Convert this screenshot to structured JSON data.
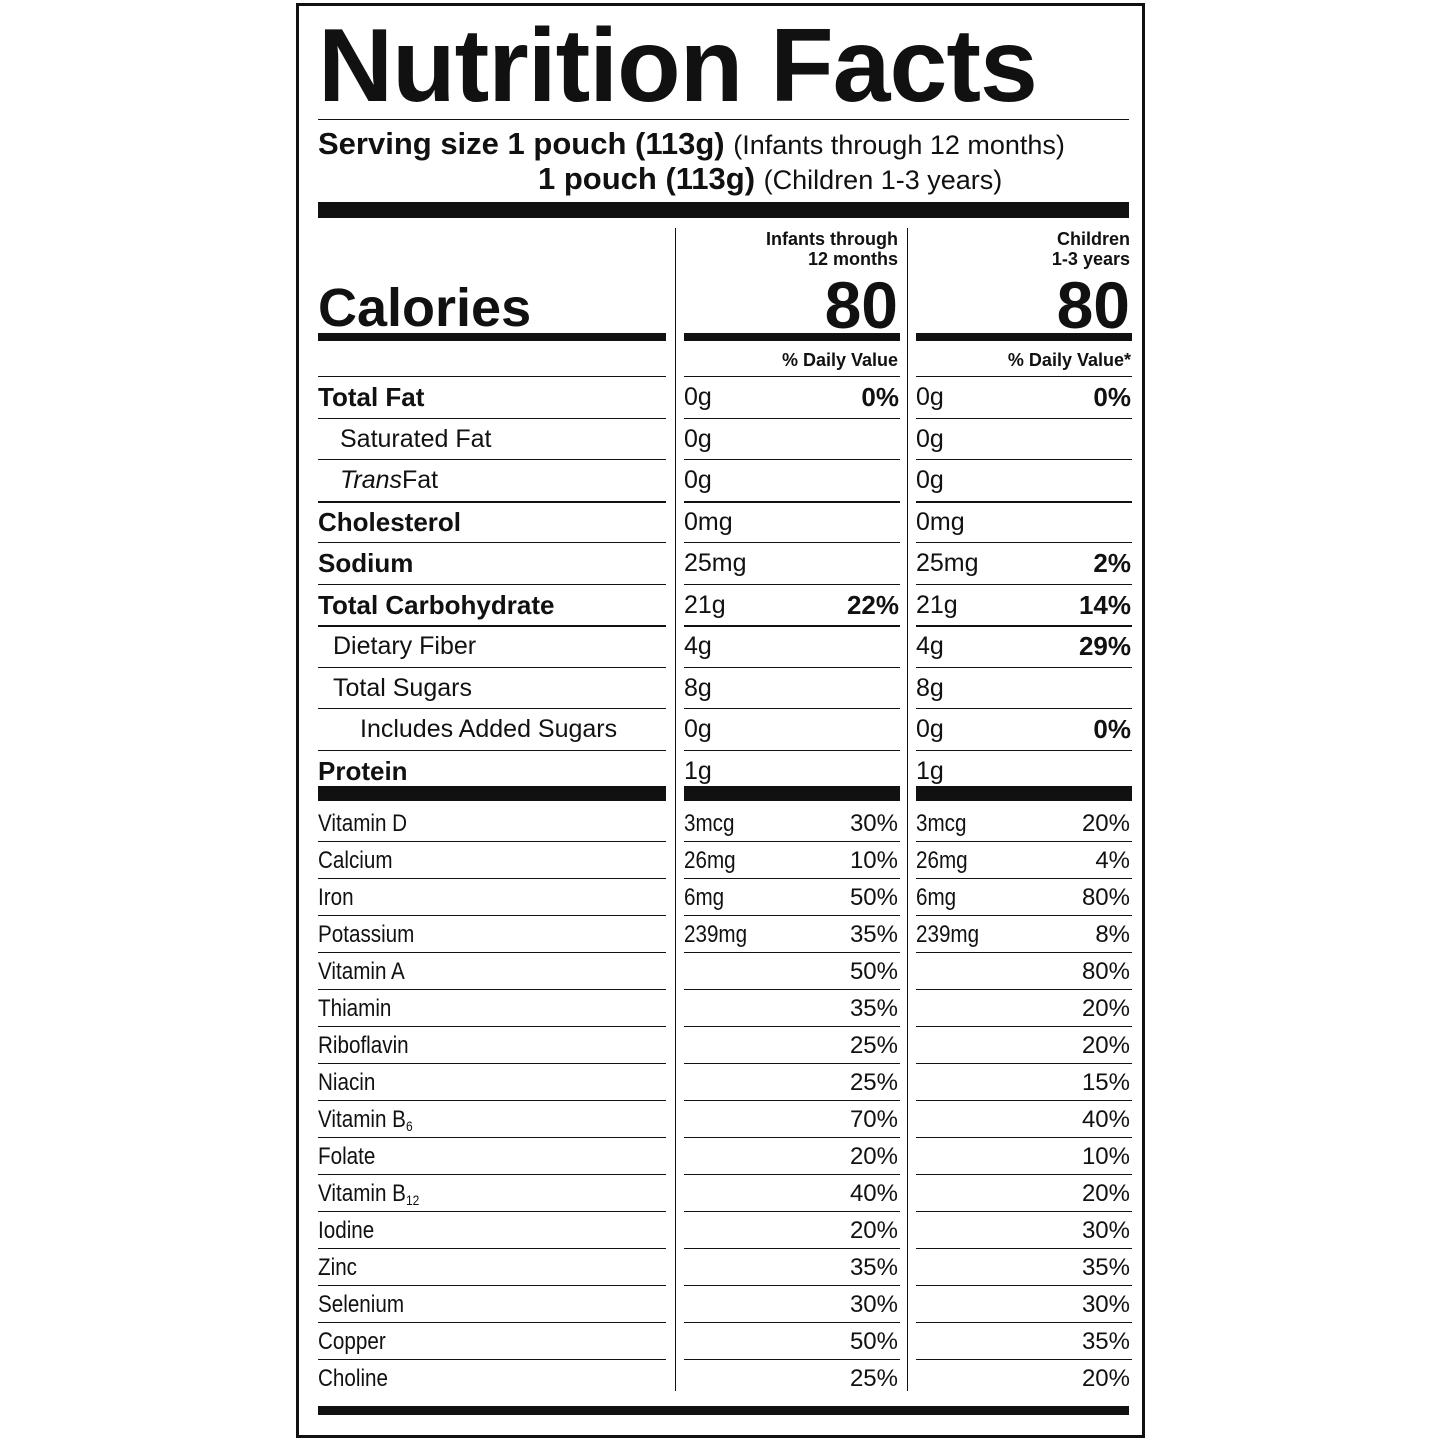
{
  "title": "Nutrition Facts",
  "serving": {
    "label": "Serving size",
    "line1_amount": "1 pouch (113g)",
    "line1_group": "(Infants through 12 months)",
    "line2_amount": "1 pouch (113g)",
    "line2_group": "(Children 1-3 years)"
  },
  "columns": {
    "infants": {
      "head1": "Infants through",
      "head2": "12 months",
      "calories": "80",
      "dv_label": "% Daily Value"
    },
    "children": {
      "head1": "Children",
      "head2": "1-3 years",
      "calories": "80",
      "dv_label": "% Daily Value*"
    }
  },
  "calories_label": "Calories",
  "nutrients": [
    {
      "label": "Total Fat",
      "bold": true,
      "indent": 0,
      "inf_amt": "0g",
      "inf_pct": "0%",
      "chi_amt": "0g",
      "chi_pct": "0%"
    },
    {
      "label": "Saturated Fat",
      "bold": false,
      "indent": 1,
      "inf_amt": "0g",
      "inf_pct": "",
      "chi_amt": "0g",
      "chi_pct": ""
    },
    {
      "label": "Trans",
      "label_suffix": " Fat",
      "italic": true,
      "bold": false,
      "indent": 1,
      "inf_amt": "0g",
      "inf_pct": "",
      "chi_amt": "0g",
      "chi_pct": ""
    },
    {
      "label": "Cholesterol",
      "bold": true,
      "indent": 0,
      "inf_amt": "0mg",
      "inf_pct": "",
      "chi_amt": "0mg",
      "chi_pct": ""
    },
    {
      "label": "Sodium",
      "bold": true,
      "indent": 0,
      "inf_amt": "25mg",
      "inf_pct": "",
      "chi_amt": "25mg",
      "chi_pct": "2%"
    },
    {
      "label": "Total Carbohydrate",
      "bold": true,
      "indent": 0,
      "inf_amt": "21g",
      "inf_pct": "22%",
      "chi_amt": "21g",
      "chi_pct": "14%"
    },
    {
      "label": "Dietary Fiber",
      "bold": false,
      "indent": 1,
      "inf_amt": "4g",
      "inf_pct": "",
      "chi_amt": "4g",
      "chi_pct": "29%"
    },
    {
      "label": "Total Sugars",
      "bold": false,
      "indent": 1,
      "inf_amt": "8g",
      "inf_pct": "",
      "chi_amt": "8g",
      "chi_pct": ""
    },
    {
      "label": "Includes Added Sugars",
      "bold": false,
      "indent": 2,
      "inf_amt": "0g",
      "inf_pct": "",
      "chi_amt": "0g",
      "chi_pct": "0%"
    },
    {
      "label": "Protein",
      "bold": true,
      "indent": 0,
      "inf_amt": "1g",
      "inf_pct": "",
      "chi_amt": "1g",
      "chi_pct": ""
    }
  ],
  "vitamins": [
    {
      "label": "Vitamin D",
      "inf_amt": "3mcg",
      "inf_pct": "30%",
      "chi_amt": "3mcg",
      "chi_pct": "20%"
    },
    {
      "label": "Calcium",
      "inf_amt": "26mg",
      "inf_pct": "10%",
      "chi_amt": "26mg",
      "chi_pct": "4%"
    },
    {
      "label": "Iron",
      "inf_amt": "6mg",
      "inf_pct": "50%",
      "chi_amt": "6mg",
      "chi_pct": "80%"
    },
    {
      "label": "Potassium",
      "inf_amt": "239mg",
      "inf_pct": "35%",
      "chi_amt": "239mg",
      "chi_pct": "8%"
    },
    {
      "label": "Vitamin A",
      "inf_amt": "",
      "inf_pct": "50%",
      "chi_amt": "",
      "chi_pct": "80%"
    },
    {
      "label": "Thiamin",
      "inf_amt": "",
      "inf_pct": "35%",
      "chi_amt": "",
      "chi_pct": "20%"
    },
    {
      "label": "Riboflavin",
      "inf_amt": "",
      "inf_pct": "25%",
      "chi_amt": "",
      "chi_pct": "20%"
    },
    {
      "label": "Niacin",
      "inf_amt": "",
      "inf_pct": "25%",
      "chi_amt": "",
      "chi_pct": "15%"
    },
    {
      "label": "Vitamin B",
      "sub": "6",
      "inf_amt": "",
      "inf_pct": "70%",
      "chi_amt": "",
      "chi_pct": "40%"
    },
    {
      "label": "Folate",
      "inf_amt": "",
      "inf_pct": "20%",
      "chi_amt": "",
      "chi_pct": "10%"
    },
    {
      "label": "Vitamin B",
      "sub": "12",
      "inf_amt": "",
      "inf_pct": "40%",
      "chi_amt": "",
      "chi_pct": "20%"
    },
    {
      "label": "Iodine",
      "inf_amt": "",
      "inf_pct": "20%",
      "chi_amt": "",
      "chi_pct": "30%"
    },
    {
      "label": "Zinc",
      "inf_amt": "",
      "inf_pct": "35%",
      "chi_amt": "",
      "chi_pct": "35%"
    },
    {
      "label": "Selenium",
      "inf_amt": "",
      "inf_pct": "30%",
      "chi_amt": "",
      "chi_pct": "30%"
    },
    {
      "label": "Copper",
      "inf_amt": "",
      "inf_pct": "50%",
      "chi_amt": "",
      "chi_pct": "35%"
    },
    {
      "label": "Choline",
      "inf_amt": "",
      "inf_pct": "25%",
      "chi_amt": "",
      "chi_pct": "20%"
    }
  ]
}
